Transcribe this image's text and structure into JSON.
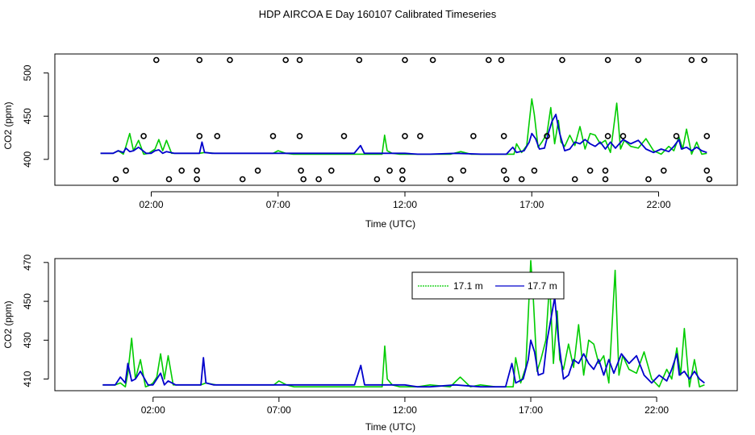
{
  "figure": {
    "title": "HDP AIRCOA E  Day 160107  Calibrated Timeseries"
  },
  "colors": {
    "series_1": "#00cc00",
    "series_2": "#0000cc",
    "axes": "#000000",
    "markers": "#000000"
  },
  "chart_data": [
    {
      "type": "line",
      "panel": "top",
      "xlabel": "Time (UTC)",
      "ylabel": "CO2 (ppm)",
      "x_unit": "hours UTC",
      "xlim": [
        -1.8,
        25.1
      ],
      "ylim": [
        370,
        522
      ],
      "xticks": [
        2,
        7,
        12,
        17,
        22
      ],
      "xtick_labels": [
        "02:00",
        "07:00",
        "12:00",
        "17:00",
        "22:00"
      ],
      "yticks": [
        400,
        450,
        500
      ],
      "ytick_labels": [
        "400",
        "450",
        "500"
      ],
      "legend": "none",
      "series": [
        {
          "color": "#00cc00",
          "x": [
            0.0,
            0.5,
            0.7,
            0.9,
            1.0,
            1.15,
            1.3,
            1.5,
            1.7,
            1.9,
            2.0,
            2.15,
            2.3,
            2.45,
            2.6,
            2.8,
            3.2,
            3.6,
            3.9,
            4.1,
            4.5,
            5.0,
            6.0,
            6.8,
            7.0,
            7.3,
            7.6,
            8.5,
            9.5,
            10.0,
            10.7,
            11.0,
            11.1,
            11.2,
            11.3,
            11.5,
            11.8,
            12.5,
            13.0,
            13.8,
            14.2,
            14.6,
            15.0,
            15.6,
            16.0,
            16.3,
            16.4,
            16.6,
            16.8,
            16.9,
            17.0,
            17.1,
            17.25,
            17.4,
            17.6,
            17.75,
            17.9,
            18.05,
            18.15,
            18.3,
            18.5,
            18.7,
            18.9,
            19.1,
            19.3,
            19.5,
            19.7,
            19.9,
            20.1,
            20.35,
            20.5,
            20.65,
            20.9,
            21.2,
            21.5,
            21.8,
            22.1,
            22.4,
            22.6,
            22.8,
            22.95,
            23.1,
            23.3,
            23.5,
            23.7,
            23.9
          ],
          "y": [
            407,
            407,
            410,
            406,
            415,
            430,
            410,
            422,
            406,
            407,
            409,
            412,
            423,
            410,
            422,
            407,
            407,
            407,
            407,
            408,
            407,
            407,
            407,
            407,
            410,
            407,
            406,
            406,
            406,
            406,
            406,
            406,
            406,
            428,
            410,
            407,
            406,
            406,
            406,
            406,
            409,
            406,
            406,
            406,
            406,
            406,
            418,
            408,
            416,
            443,
            470,
            452,
            414,
            420,
            430,
            460,
            418,
            445,
            420,
            415,
            428,
            416,
            438,
            412,
            430,
            428,
            418,
            422,
            408,
            465,
            412,
            422,
            415,
            413,
            424,
            410,
            406,
            415,
            410,
            426,
            412,
            435,
            406,
            420,
            406,
            407
          ]
        },
        {
          "color": "#0000cc",
          "x": [
            0.0,
            0.5,
            0.7,
            0.9,
            1.0,
            1.15,
            1.3,
            1.5,
            1.8,
            2.0,
            2.15,
            2.3,
            2.45,
            2.6,
            2.9,
            3.2,
            3.6,
            3.9,
            4.0,
            4.1,
            4.4,
            5.0,
            6.0,
            7.0,
            8.0,
            9.0,
            10.0,
            10.25,
            10.4,
            10.7,
            11.0,
            11.3,
            11.6,
            12.0,
            12.5,
            13.0,
            14.0,
            15.0,
            15.6,
            16.0,
            16.25,
            16.4,
            16.7,
            16.9,
            17.0,
            17.15,
            17.3,
            17.5,
            17.65,
            17.8,
            17.95,
            18.1,
            18.3,
            18.5,
            18.7,
            18.9,
            19.1,
            19.3,
            19.5,
            19.7,
            19.9,
            20.1,
            20.3,
            20.6,
            20.9,
            21.2,
            21.5,
            21.8,
            22.1,
            22.4,
            22.6,
            22.8,
            22.9,
            23.1,
            23.3,
            23.5,
            23.7,
            23.9
          ],
          "y": [
            407,
            407,
            410,
            408,
            413,
            409,
            410,
            414,
            407,
            407,
            410,
            411,
            407,
            409,
            407,
            407,
            407,
            407,
            420,
            408,
            407,
            407,
            407,
            407,
            407,
            407,
            407,
            416,
            407,
            407,
            407,
            407,
            407,
            407,
            406,
            406,
            407,
            406,
            406,
            406,
            414,
            408,
            410,
            420,
            430,
            424,
            412,
            413,
            430,
            444,
            452,
            430,
            410,
            412,
            420,
            418,
            423,
            418,
            415,
            420,
            412,
            420,
            413,
            423,
            418,
            422,
            412,
            408,
            412,
            409,
            415,
            423,
            412,
            414,
            410,
            414,
            410,
            408
          ]
        }
      ],
      "markers": [
        {
          "x": 2.2,
          "y": 515
        },
        {
          "x": 3.9,
          "y": 515
        },
        {
          "x": 5.1,
          "y": 515
        },
        {
          "x": 7.3,
          "y": 515
        },
        {
          "x": 7.85,
          "y": 515
        },
        {
          "x": 10.2,
          "y": 515
        },
        {
          "x": 12.0,
          "y": 515
        },
        {
          "x": 13.1,
          "y": 515
        },
        {
          "x": 15.3,
          "y": 515
        },
        {
          "x": 15.8,
          "y": 515
        },
        {
          "x": 18.2,
          "y": 515
        },
        {
          "x": 20.0,
          "y": 515
        },
        {
          "x": 21.2,
          "y": 515
        },
        {
          "x": 23.3,
          "y": 515
        },
        {
          "x": 23.8,
          "y": 515
        },
        {
          "x": 1.7,
          "y": 427
        },
        {
          "x": 3.9,
          "y": 427
        },
        {
          "x": 4.6,
          "y": 427
        },
        {
          "x": 6.8,
          "y": 427
        },
        {
          "x": 7.85,
          "y": 427
        },
        {
          "x": 9.6,
          "y": 427
        },
        {
          "x": 12.0,
          "y": 427
        },
        {
          "x": 12.6,
          "y": 427
        },
        {
          "x": 14.7,
          "y": 427
        },
        {
          "x": 15.9,
          "y": 427
        },
        {
          "x": 17.6,
          "y": 427
        },
        {
          "x": 20.0,
          "y": 427
        },
        {
          "x": 20.6,
          "y": 427
        },
        {
          "x": 22.7,
          "y": 427
        },
        {
          "x": 23.9,
          "y": 427
        },
        {
          "x": 1.0,
          "y": 387
        },
        {
          "x": 3.2,
          "y": 387
        },
        {
          "x": 3.8,
          "y": 387
        },
        {
          "x": 6.2,
          "y": 387
        },
        {
          "x": 7.9,
          "y": 387
        },
        {
          "x": 9.1,
          "y": 387
        },
        {
          "x": 11.4,
          "y": 387
        },
        {
          "x": 11.9,
          "y": 387
        },
        {
          "x": 14.3,
          "y": 387
        },
        {
          "x": 15.9,
          "y": 387
        },
        {
          "x": 17.1,
          "y": 387
        },
        {
          "x": 19.3,
          "y": 387
        },
        {
          "x": 19.9,
          "y": 387
        },
        {
          "x": 22.2,
          "y": 387
        },
        {
          "x": 23.9,
          "y": 387
        },
        {
          "x": 0.6,
          "y": 377
        },
        {
          "x": 2.7,
          "y": 377
        },
        {
          "x": 3.8,
          "y": 377
        },
        {
          "x": 5.6,
          "y": 377
        },
        {
          "x": 8.0,
          "y": 377
        },
        {
          "x": 8.6,
          "y": 377
        },
        {
          "x": 10.9,
          "y": 377
        },
        {
          "x": 11.9,
          "y": 377
        },
        {
          "x": 13.8,
          "y": 377
        },
        {
          "x": 16.0,
          "y": 377
        },
        {
          "x": 16.6,
          "y": 377
        },
        {
          "x": 18.7,
          "y": 377
        },
        {
          "x": 19.9,
          "y": 377
        },
        {
          "x": 21.6,
          "y": 377
        },
        {
          "x": 24.0,
          "y": 377
        }
      ]
    },
    {
      "type": "line",
      "panel": "bottom",
      "xlabel": "Time (UTC)",
      "ylabel": "CO2 (ppm)",
      "x_unit": "hours UTC",
      "xlim": [
        -1.9,
        25.2
      ],
      "ylim": [
        404,
        472
      ],
      "xticks": [
        2,
        7,
        12,
        17,
        22
      ],
      "xtick_labels": [
        "02:00",
        "07:00",
        "12:00",
        "17:00",
        "22:00"
      ],
      "yticks": [
        410,
        430,
        450,
        470
      ],
      "ytick_labels": [
        "410",
        "430",
        "450",
        "470"
      ],
      "legend": "top-right",
      "series": [
        {
          "name": "17.1 m",
          "color": "#00cc00",
          "x": [
            0.0,
            0.5,
            0.7,
            0.9,
            1.0,
            1.15,
            1.3,
            1.5,
            1.7,
            1.9,
            2.0,
            2.15,
            2.3,
            2.45,
            2.6,
            2.8,
            3.2,
            3.6,
            3.9,
            4.1,
            4.5,
            5.0,
            6.0,
            6.8,
            7.0,
            7.3,
            7.6,
            8.5,
            9.5,
            10.0,
            10.7,
            11.0,
            11.1,
            11.2,
            11.3,
            11.5,
            11.8,
            12.5,
            13.0,
            13.8,
            14.2,
            14.6,
            15.0,
            15.6,
            16.0,
            16.3,
            16.4,
            16.6,
            16.8,
            16.9,
            17.0,
            17.1,
            17.25,
            17.4,
            17.6,
            17.75,
            17.9,
            18.05,
            18.15,
            18.3,
            18.5,
            18.7,
            18.9,
            19.1,
            19.3,
            19.5,
            19.7,
            19.9,
            20.1,
            20.35,
            20.5,
            20.65,
            20.9,
            21.2,
            21.5,
            21.8,
            22.1,
            22.4,
            22.6,
            22.8,
            22.95,
            23.1,
            23.3,
            23.5,
            23.7,
            23.9
          ],
          "y": [
            407,
            407,
            408,
            406,
            413,
            431,
            410,
            420,
            406,
            407,
            408,
            411,
            423,
            410,
            422,
            407,
            407,
            407,
            407,
            408,
            407,
            407,
            407,
            407,
            409,
            407,
            406,
            406,
            406,
            406,
            406,
            406,
            406,
            427,
            410,
            407,
            406,
            406,
            407,
            406,
            411,
            406,
            407,
            406,
            406,
            406,
            421,
            408,
            416,
            443,
            471,
            452,
            414,
            420,
            430,
            460,
            418,
            445,
            420,
            415,
            428,
            416,
            438,
            412,
            430,
            428,
            418,
            422,
            408,
            466,
            412,
            422,
            415,
            413,
            424,
            410,
            406,
            415,
            410,
            426,
            412,
            436,
            406,
            420,
            406,
            407
          ]
        },
        {
          "name": "17.7 m",
          "color": "#0000cc",
          "x": [
            0.0,
            0.5,
            0.7,
            0.9,
            1.0,
            1.15,
            1.3,
            1.5,
            1.8,
            2.0,
            2.15,
            2.3,
            2.45,
            2.6,
            2.9,
            3.2,
            3.6,
            3.9,
            4.0,
            4.1,
            4.4,
            5.0,
            6.0,
            7.0,
            8.0,
            9.0,
            10.0,
            10.25,
            10.4,
            10.7,
            11.0,
            11.3,
            11.6,
            12.0,
            12.5,
            13.0,
            14.0,
            15.0,
            15.6,
            16.0,
            16.25,
            16.4,
            16.7,
            16.9,
            17.0,
            17.15,
            17.3,
            17.5,
            17.65,
            17.8,
            17.95,
            18.1,
            18.3,
            18.5,
            18.7,
            18.9,
            19.1,
            19.3,
            19.5,
            19.7,
            19.9,
            20.1,
            20.3,
            20.6,
            20.9,
            21.2,
            21.5,
            21.8,
            22.1,
            22.4,
            22.6,
            22.8,
            22.9,
            23.1,
            23.3,
            23.5,
            23.7,
            23.9
          ],
          "y": [
            407,
            407,
            411,
            408,
            418,
            409,
            410,
            414,
            407,
            407,
            410,
            413,
            407,
            409,
            407,
            407,
            407,
            407,
            421,
            408,
            407,
            407,
            407,
            407,
            407,
            407,
            407,
            417,
            407,
            407,
            407,
            407,
            407,
            407,
            406,
            406,
            407,
            406,
            406,
            406,
            418,
            408,
            410,
            420,
            430,
            424,
            412,
            413,
            430,
            441,
            452,
            430,
            410,
            412,
            420,
            418,
            423,
            418,
            415,
            420,
            412,
            420,
            413,
            423,
            418,
            422,
            412,
            408,
            412,
            409,
            415,
            423,
            412,
            414,
            410,
            414,
            410,
            408
          ]
        }
      ]
    }
  ]
}
